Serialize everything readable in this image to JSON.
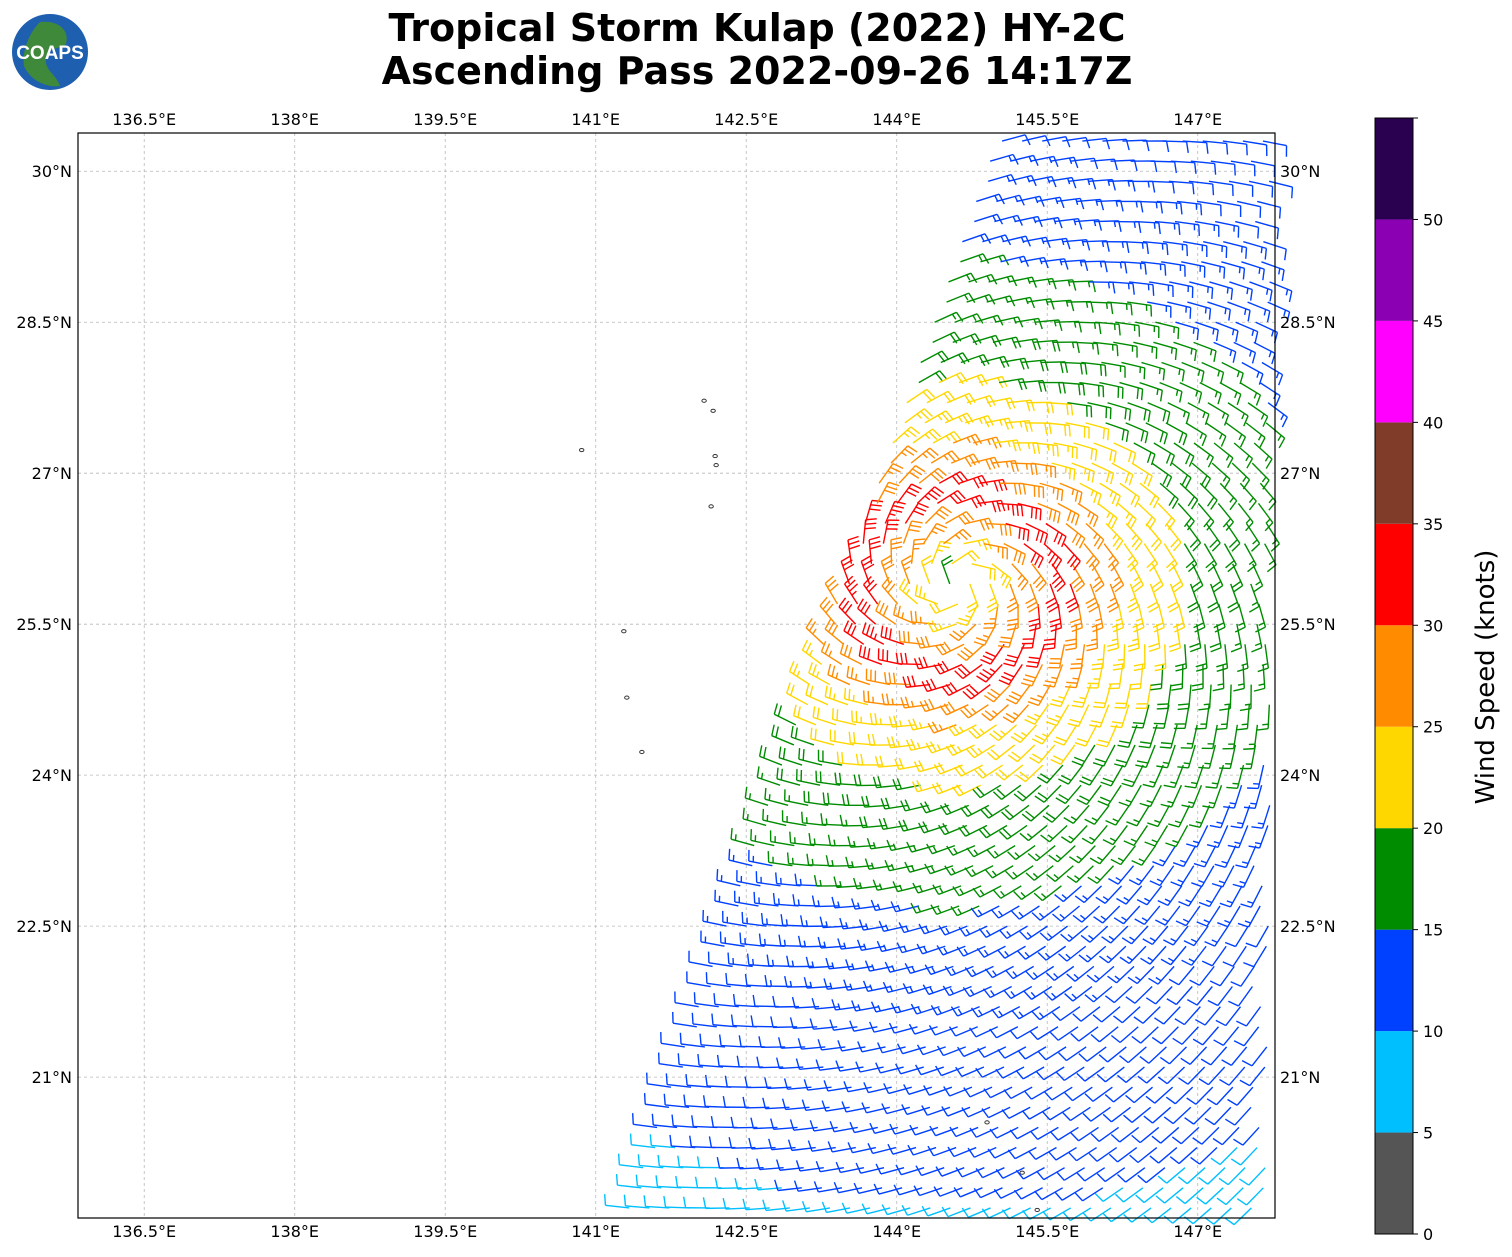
{
  "title": {
    "line1": "Tropical Storm Kulap (2022) HY-2C",
    "line2": "Ascending Pass 2022-09-26 14:17Z"
  },
  "logo": {
    "text": "COAPS"
  },
  "chart_data": {
    "type": "wind-barb map",
    "lon_ticks": [
      "136.5°E",
      "138°E",
      "139.5°E",
      "141°E",
      "142.5°E",
      "144°E",
      "145.5°E",
      "147°E"
    ],
    "lat_ticks": [
      "30°N",
      "28.5°N",
      "27°N",
      "25.5°N",
      "24°N",
      "22.5°N",
      "21°N"
    ],
    "lon_tick_values": [
      136.5,
      138,
      139.5,
      141,
      142.5,
      144,
      145.5,
      147
    ],
    "lat_tick_values": [
      30,
      28.5,
      27,
      25.5,
      24,
      22.5,
      21
    ],
    "xlim": [
      135.84,
      147.77
    ],
    "ylim": [
      19.6,
      30.38
    ],
    "grid": true,
    "colorbar": {
      "label": "Wind Speed (knots)",
      "tick_labels": [
        "0",
        "5",
        "10",
        "15",
        "20",
        "25",
        "30",
        "35",
        "40",
        "45",
        "50"
      ],
      "tick_values": [
        0,
        5,
        10,
        15,
        20,
        25,
        30,
        35,
        40,
        45,
        50
      ],
      "colors": [
        "#555555",
        "#00bfff",
        "#0040ff",
        "#008c00",
        "#ffd700",
        "#ff8c00",
        "#ff0000",
        "#803c28",
        "#ff00ff",
        "#8c00b4",
        "#2a0050"
      ]
    },
    "storm_center": {
      "lon": 144.6,
      "lat": 25.9
    },
    "max_wind_knots": 33,
    "islands": [
      {
        "lon": 142.08,
        "lat": 27.72
      },
      {
        "lon": 142.17,
        "lat": 27.62
      },
      {
        "lon": 140.86,
        "lat": 27.23
      },
      {
        "lon": 142.19,
        "lat": 27.17
      },
      {
        "lon": 142.2,
        "lat": 27.08
      },
      {
        "lon": 142.15,
        "lat": 26.67
      },
      {
        "lon": 141.28,
        "lat": 25.43
      },
      {
        "lon": 141.31,
        "lat": 24.77
      },
      {
        "lon": 141.46,
        "lat": 24.23
      },
      {
        "lon": 144.9,
        "lat": 20.55
      },
      {
        "lon": 145.25,
        "lat": 20.05
      },
      {
        "lon": 145.4,
        "lat": 19.68
      }
    ]
  }
}
